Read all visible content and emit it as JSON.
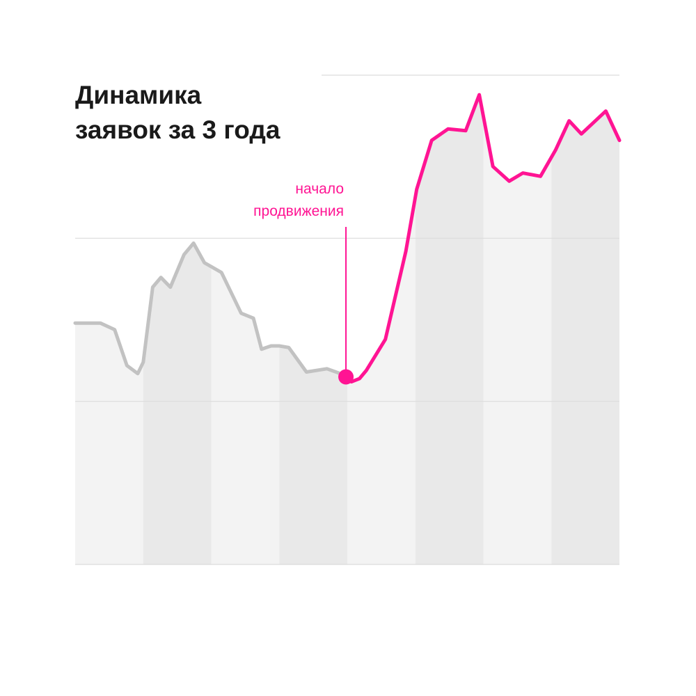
{
  "chart_data": {
    "type": "line",
    "title_lines": [
      "Динамика",
      "заявок за 3 года"
    ],
    "xlabel": "",
    "ylabel": "",
    "xlim": [
      0,
      8
    ],
    "ylim": [
      0,
      3
    ],
    "grid": true,
    "columns": 8,
    "x": [
      0,
      0.37,
      0.58,
      0.76,
      0.92,
      1.0,
      1.14,
      1.26,
      1.4,
      1.6,
      1.74,
      1.9,
      2.15,
      2.44,
      2.62,
      2.74,
      2.88,
      3.0,
      3.14,
      3.4,
      3.7,
      3.9,
      4.0,
      4.06,
      4.18,
      4.28,
      4.56,
      4.86,
      5.02,
      5.24,
      5.48,
      5.74,
      5.94,
      6.14,
      6.38,
      6.58,
      6.84,
      7.06,
      7.26,
      7.44,
      7.8,
      8.0
    ],
    "y": [
      1.48,
      1.48,
      1.44,
      1.22,
      1.17,
      1.24,
      1.7,
      1.76,
      1.7,
      1.9,
      1.97,
      1.85,
      1.79,
      1.54,
      1.51,
      1.32,
      1.34,
      1.34,
      1.33,
      1.18,
      1.2,
      1.17,
      1.15,
      1.12,
      1.14,
      1.19,
      1.38,
      1.92,
      2.3,
      2.6,
      2.67,
      2.66,
      2.88,
      2.44,
      2.35,
      2.4,
      2.38,
      2.54,
      2.72,
      2.64,
      2.78,
      2.6
    ],
    "highlight_index": 22,
    "annotation_lines": [
      "начало",
      "продвижения"
    ],
    "colors": {
      "before": "#c2c2c2",
      "after": "#ff1493",
      "area": "#d6d6d6",
      "column_light": "#f3f3f3",
      "column_dark": "#e9e9e9",
      "grid": "#dcdcdc",
      "title": "#1a1a1a"
    }
  }
}
